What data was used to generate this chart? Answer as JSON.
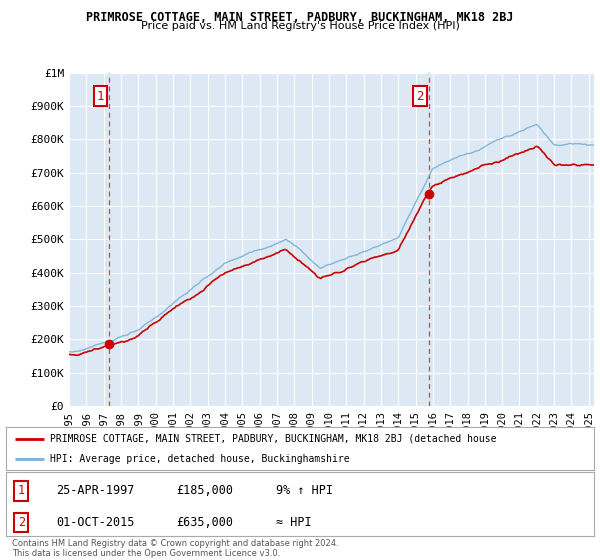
{
  "title": "PRIMROSE COTTAGE, MAIN STREET, PADBURY, BUCKINGHAM, MK18 2BJ",
  "subtitle": "Price paid vs. HM Land Registry's House Price Index (HPI)",
  "background_color": "#ffffff",
  "plot_bg_color": "#dce9f5",
  "ylim": [
    0,
    1000000
  ],
  "yticks": [
    0,
    100000,
    200000,
    300000,
    400000,
    500000,
    600000,
    700000,
    800000,
    900000,
    1000000
  ],
  "ytick_labels": [
    "£0",
    "£100K",
    "£200K",
    "£300K",
    "£400K",
    "£500K",
    "£600K",
    "£700K",
    "£800K",
    "£900K",
    "£1M"
  ],
  "sale1_year": 1997.32,
  "sale1_price": 185000,
  "sale2_year": 2015.75,
  "sale2_price": 635000,
  "legend_red_label": "PRIMROSE COTTAGE, MAIN STREET, PADBURY, BUCKINGHAM, MK18 2BJ (detached house",
  "legend_blue_label": "HPI: Average price, detached house, Buckinghamshire",
  "footer_text": "Contains HM Land Registry data © Crown copyright and database right 2024.\nThis data is licensed under the Open Government Licence v3.0.",
  "table_rows": [
    [
      "1",
      "25-APR-1997",
      "£185,000",
      "9% ↑ HPI"
    ],
    [
      "2",
      "01-OCT-2015",
      "£635,000",
      "≈ HPI"
    ]
  ],
  "red_line_color": "#cc0000",
  "blue_line_color": "#7ab0d4",
  "grid_color": "#ffffff",
  "xlim_start": 1995.0,
  "xlim_end": 2025.3
}
